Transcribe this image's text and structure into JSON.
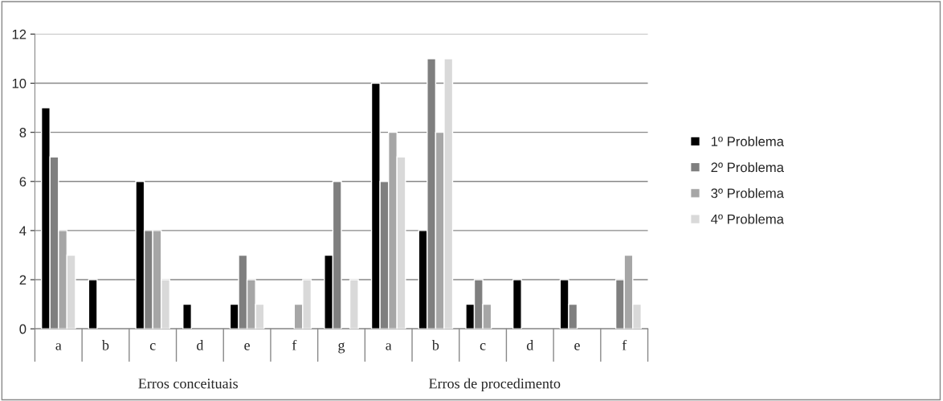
{
  "chart_data": {
    "type": "bar",
    "categories": [
      "a",
      "b",
      "c",
      "d",
      "e",
      "f",
      "g",
      "a",
      "b",
      "c",
      "d",
      "e",
      "f"
    ],
    "series": [
      {
        "name": "1º Problema",
        "color": "#000000",
        "values": [
          9,
          2,
          6,
          1,
          1,
          null,
          3,
          10,
          4,
          1,
          2,
          2,
          null
        ]
      },
      {
        "name": "2º Problema",
        "color": "#7f7f7f",
        "values": [
          7,
          null,
          4,
          null,
          3,
          null,
          6,
          6,
          11,
          2,
          null,
          1,
          2
        ]
      },
      {
        "name": "3º Problema",
        "color": "#a6a6a6",
        "values": [
          4,
          null,
          4,
          null,
          2,
          1,
          null,
          8,
          8,
          1,
          null,
          null,
          3
        ]
      },
      {
        "name": "4º Problema",
        "color": "#d9d9d9",
        "values": [
          3,
          null,
          2,
          null,
          1,
          2,
          2,
          7,
          11,
          null,
          null,
          null,
          1
        ]
      }
    ],
    "annotations": [
      "Erros conceituais",
      "Erros de procedimento"
    ],
    "ylim": [
      0,
      12
    ],
    "yticks": [
      0,
      2,
      4,
      6,
      8,
      10,
      12
    ],
    "grid": "y",
    "legend": "right"
  }
}
